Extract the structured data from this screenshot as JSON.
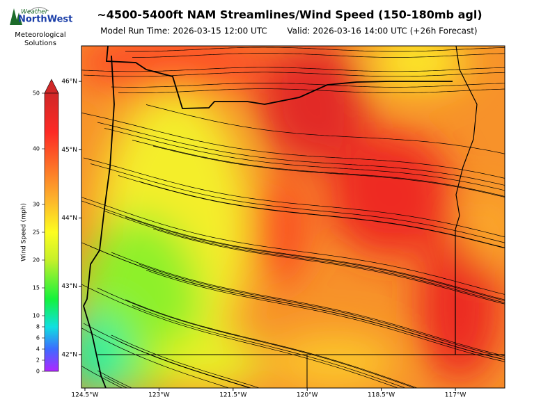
{
  "header": {
    "title": "~4500-5400ft NAM Streamlines/Wind Speed (150-180mb agl)",
    "model_run": "Model Run Time: 2026-03-15 12:00 UTC",
    "valid": "Valid: 2026-03-16 14:00 UTC  (+26h Forecast)"
  },
  "logo": {
    "brand_top": "Weather",
    "brand_bottom": "NorthWest",
    "line1": "Meteorological",
    "line2": "Solutions"
  },
  "colorbar": {
    "label": "Wind Speed (mph)",
    "lim": [
      0,
      50
    ],
    "ticks": [
      0,
      2,
      4,
      6,
      8,
      10,
      15,
      20,
      25,
      30,
      40,
      50
    ]
  },
  "map": {
    "lat_lim": [
      41.51,
      46.52
    ],
    "lon_lim": [
      124.57,
      116.0
    ],
    "lat_ticks": [
      {
        "value": 46,
        "label": "46°N"
      },
      {
        "value": 45,
        "label": "45°N"
      },
      {
        "value": 44,
        "label": "44°N"
      },
      {
        "value": 43,
        "label": "43°N"
      },
      {
        "value": 42,
        "label": "42°N"
      }
    ],
    "lon_ticks": [
      {
        "value": 124.5,
        "label": "124.5°W"
      },
      {
        "value": 123,
        "label": "123°W"
      },
      {
        "value": 121.5,
        "label": "121.5°W"
      },
      {
        "value": 120,
        "label": "120°W"
      },
      {
        "value": 118.5,
        "label": "118.5°W"
      },
      {
        "value": 117,
        "label": "117°W"
      }
    ]
  }
}
